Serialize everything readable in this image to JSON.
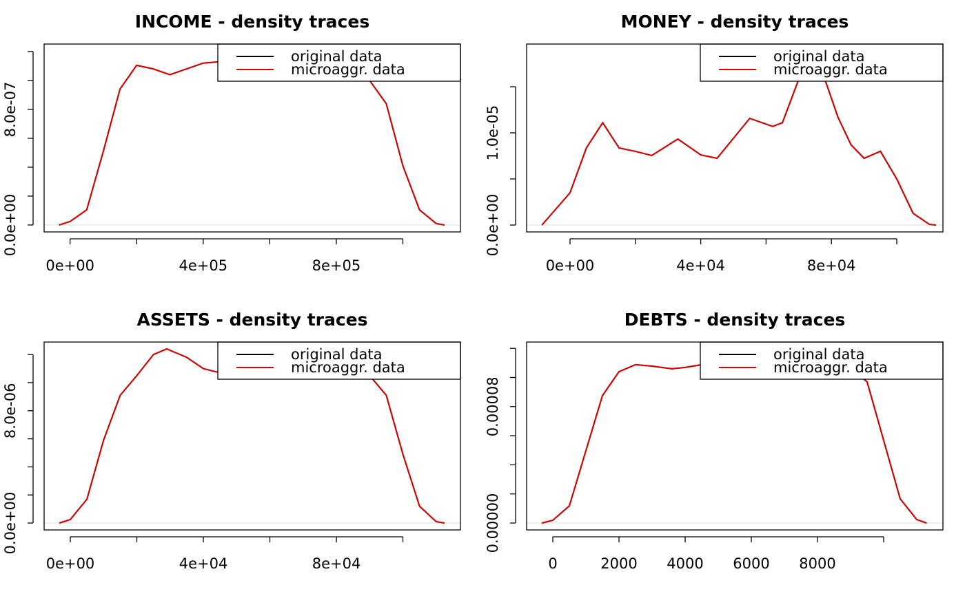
{
  "chart_data": [
    {
      "type": "line",
      "title": "INCOME - density traces",
      "x": [
        -33000,
        0,
        50000,
        100000,
        150000,
        200000,
        250000,
        300000,
        400000,
        450000,
        500000,
        600000,
        700000,
        800000,
        850000,
        900000,
        950000,
        1000000,
        1050000,
        1100000,
        1125000
      ],
      "series": [
        {
          "name": "original data",
          "color": "#000000",
          "values": [
            0,
            2.4e-08,
            1.05e-07,
            5.1e-07,
            9.4e-07,
            1.105e-06,
            1.08e-06,
            1.04e-06,
            1.12e-06,
            1.13e-06,
            1.12e-06,
            1.1e-06,
            1.1e-06,
            1.1e-06,
            1.08e-06,
            1e-06,
            8.4e-07,
            4.1e-07,
            1.05e-07,
            1e-08,
            0
          ]
        },
        {
          "name": "microaggr. data",
          "color": "#dd0000",
          "values": [
            0,
            2.4e-08,
            1.05e-07,
            5.1e-07,
            9.4e-07,
            1.105e-06,
            1.08e-06,
            1.04e-06,
            1.12e-06,
            1.13e-06,
            1.12e-06,
            1.1e-06,
            1.1e-06,
            1.1e-06,
            1.08e-06,
            1e-06,
            8.4e-07,
            4.1e-07,
            1.05e-07,
            1e-08,
            0
          ]
        }
      ],
      "xlim": [
        -78000,
        1173000
      ],
      "ylim": [
        -4.8e-08,
        1.252e-06
      ],
      "xticks": [
        {
          "value": 0,
          "label": "0e+00"
        },
        {
          "value": 200000,
          "label": null
        },
        {
          "value": 400000,
          "label": "4e+05"
        },
        {
          "value": 600000,
          "label": null
        },
        {
          "value": 800000,
          "label": "8e+05"
        },
        {
          "value": 1000000,
          "label": null
        }
      ],
      "yticks": [
        {
          "value": 0,
          "label": "0.0e+00"
        },
        {
          "value": 2e-07,
          "label": null
        },
        {
          "value": 4e-07,
          "label": null
        },
        {
          "value": 6e-07,
          "label": null
        },
        {
          "value": 8e-07,
          "label": "8.0e-07"
        },
        {
          "value": 1e-06,
          "label": null
        },
        {
          "value": 1.2e-06,
          "label": null
        }
      ],
      "legend": "top-right"
    },
    {
      "type": "line",
      "title": "MONEY - density traces",
      "x": [
        -8600,
        0,
        5000,
        10000,
        15000,
        20000,
        25000,
        33000,
        40000,
        45000,
        55000,
        62000,
        65000,
        70000,
        72000,
        76000,
        78000,
        82000,
        86000,
        90000,
        95000,
        100000,
        105000,
        110000,
        112000
      ],
      "series": [
        {
          "name": "original data",
          "color": "#000000",
          "values": [
            0,
            3.5e-06,
            8.36e-06,
            1.11e-05,
            8.36e-06,
            7.99e-06,
            7.54e-06,
            9.33e-06,
            7.61e-06,
            7.24e-06,
            1.157e-05,
            1.07e-05,
            1.11e-05,
            1.58e-05,
            1.77e-05,
            1.77e-05,
            1.58e-05,
            1.17e-05,
            8.7e-06,
            7.24e-06,
            8e-06,
            5e-06,
            1.27e-06,
            7e-08,
            0
          ]
        },
        {
          "name": "microaggr. data",
          "color": "#dd0000",
          "values": [
            0,
            3.5e-06,
            8.36e-06,
            1.11e-05,
            8.36e-06,
            7.99e-06,
            7.54e-06,
            9.33e-06,
            7.61e-06,
            7.24e-06,
            1.157e-05,
            1.07e-05,
            1.11e-05,
            1.58e-05,
            1.77e-05,
            1.77e-05,
            1.58e-05,
            1.17e-05,
            8.7e-06,
            7.24e-06,
            8e-06,
            5e-06,
            1.27e-06,
            7e-08,
            0
          ]
        }
      ],
      "xlim": [
        -13290,
        114135
      ],
      "ylim": [
        -7.46e-07,
        1.963e-05
      ],
      "xticks": [
        {
          "value": 0,
          "label": "0e+00"
        },
        {
          "value": 20000,
          "label": null
        },
        {
          "value": 40000,
          "label": "4e+04"
        },
        {
          "value": 60000,
          "label": null
        },
        {
          "value": 80000,
          "label": "8e+04"
        },
        {
          "value": 100000,
          "label": null
        }
      ],
      "yticks": [
        {
          "value": 0,
          "label": "0.0e+00"
        },
        {
          "value": 5e-06,
          "label": null
        },
        {
          "value": 1e-05,
          "label": "1.0e-05"
        },
        {
          "value": 1.5e-05,
          "label": null
        }
      ],
      "legend": "top-right"
    },
    {
      "type": "line",
      "title": "ASSETS - density traces",
      "x": [
        -3300,
        0,
        5000,
        10000,
        15000,
        20000,
        25000,
        29000,
        35000,
        40000,
        45000,
        50000,
        60000,
        70000,
        80000,
        85000,
        90000,
        95000,
        100000,
        105000,
        110000,
        112500
      ],
      "series": [
        {
          "name": "original data",
          "color": "#000000",
          "values": [
            0,
            2.5e-07,
            1.7e-06,
            5.9e-06,
            9.1e-06,
            1.05e-05,
            1.2e-05,
            1.24e-05,
            1.18e-05,
            1.1e-05,
            1.07e-05,
            1.06e-05,
            1.06e-05,
            1.06e-05,
            1.06e-05,
            1.06e-05,
            1.05e-05,
            9.1e-06,
            4.9e-06,
            1.2e-06,
            1e-07,
            0
          ]
        },
        {
          "name": "microaggr. data",
          "color": "#dd0000",
          "values": [
            0,
            2.5e-07,
            1.7e-06,
            5.9e-06,
            9.1e-06,
            1.05e-05,
            1.2e-05,
            1.24e-05,
            1.18e-05,
            1.1e-05,
            1.07e-05,
            1.06e-05,
            1.06e-05,
            1.06e-05,
            1.06e-05,
            1.06e-05,
            1.05e-05,
            9.1e-06,
            4.9e-06,
            1.2e-06,
            1e-07,
            0
          ]
        }
      ],
      "xlim": [
        -7876,
        117300
      ],
      "ylim": [
        -4.9e-07,
        1.289e-05
      ],
      "xticks": [
        {
          "value": 0,
          "label": "0e+00"
        },
        {
          "value": 20000,
          "label": null
        },
        {
          "value": 40000,
          "label": "4e+04"
        },
        {
          "value": 60000,
          "label": null
        },
        {
          "value": 80000,
          "label": "8e+04"
        },
        {
          "value": 100000,
          "label": null
        }
      ],
      "yticks": [
        {
          "value": 0,
          "label": "0.0e+00"
        },
        {
          "value": 2e-06,
          "label": null
        },
        {
          "value": 4e-06,
          "label": null
        },
        {
          "value": 6e-06,
          "label": null
        },
        {
          "value": 8e-06,
          "label": "8.0e-06"
        },
        {
          "value": 1e-05,
          "label": null
        },
        {
          "value": 1.2e-05,
          "label": null
        }
      ],
      "legend": "top-right"
    },
    {
      "type": "line",
      "title": "DEBTS - density traces",
      "x": [
        -330,
        0,
        500,
        1000,
        1500,
        2000,
        2500,
        3000,
        3600,
        4000,
        4500,
        5000,
        6000,
        7000,
        8000,
        8500,
        9000,
        9500,
        10000,
        10500,
        11000,
        11300
      ],
      "series": [
        {
          "name": "original data",
          "color": "#000000",
          "values": [
            0,
            1.9e-06,
            1.18e-05,
            4.97e-05,
            8.75e-05,
            0.000104,
            0.0001088,
            0.0001078,
            0.000106,
            0.0001069,
            0.0001088,
            0.000109,
            0.000109,
            0.000109,
            0.000109,
            0.000108,
            0.0001064,
            9.7e-05,
            5.68e-05,
            1.66e-05,
            2.4e-06,
            0
          ]
        },
        {
          "name": "microaggr. data",
          "color": "#dd0000",
          "values": [
            0,
            1.9e-06,
            1.18e-05,
            4.97e-05,
            8.75e-05,
            0.000104,
            0.0001088,
            0.0001078,
            0.000106,
            0.0001069,
            0.0001088,
            0.000109,
            0.000109,
            0.000109,
            0.000109,
            0.000108,
            0.0001064,
            9.7e-05,
            5.68e-05,
            1.66e-05,
            2.4e-06,
            0
          ]
        }
      ],
      "xlim": [
        -792,
        11792
      ],
      "ylim": [
        -4.73e-06,
        0.00012435
      ],
      "xticks": [
        0,
        2000,
        4000,
        6000,
        8000,
        {
          "value": 10000,
          "label": null
        }
      ],
      "yticks": [
        {
          "value": 0,
          "label": "0.00000"
        },
        {
          "value": 2e-05,
          "label": null
        },
        {
          "value": 4e-05,
          "label": null
        },
        {
          "value": 6e-05,
          "label": null
        },
        {
          "value": 8e-05,
          "label": "0.00008"
        },
        {
          "value": 0.0001,
          "label": null
        },
        {
          "value": 0.00012,
          "label": null
        }
      ],
      "legend": "top-right"
    }
  ]
}
